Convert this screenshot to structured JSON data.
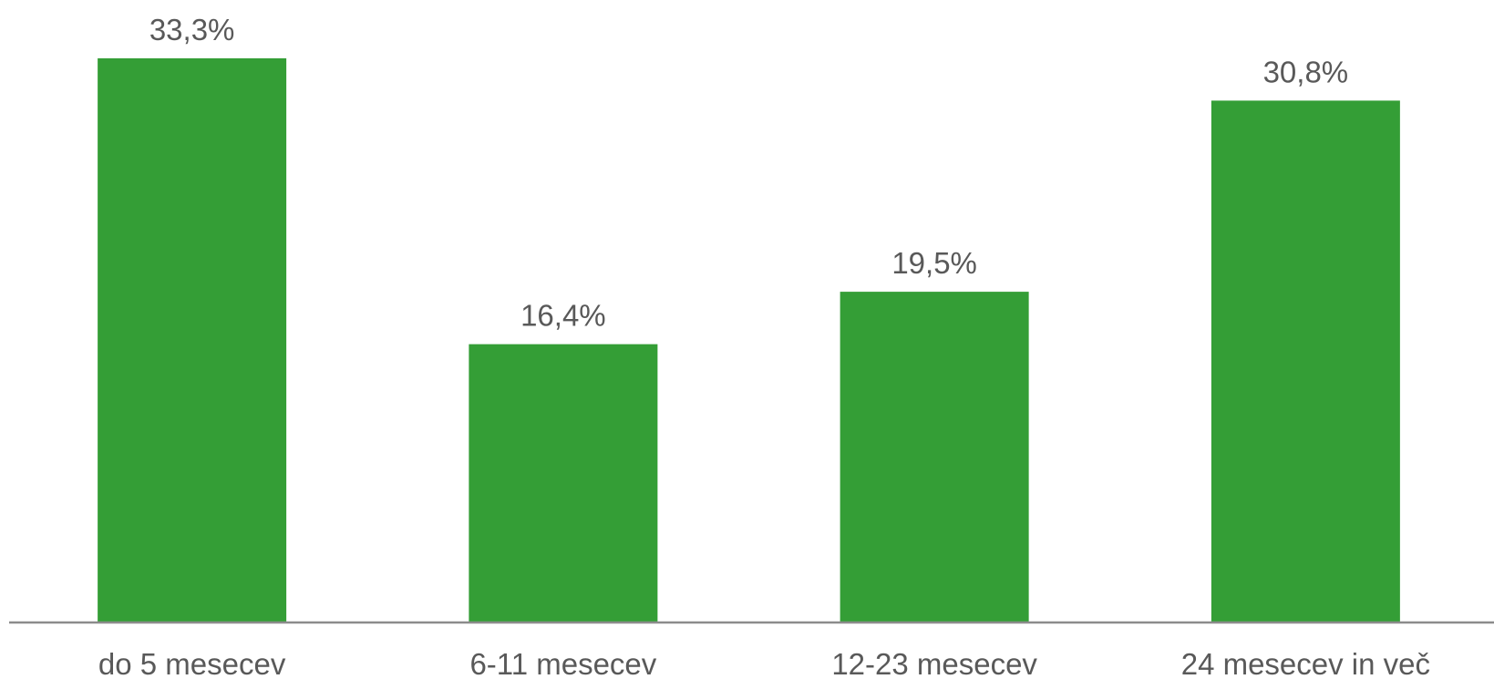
{
  "chart_data": {
    "type": "bar",
    "categories": [
      "do 5 mesecev",
      "6-11 mesecev",
      "12-23 mesecev",
      "24 mesecev in več"
    ],
    "values": [
      33.3,
      16.4,
      19.5,
      30.8
    ],
    "value_labels": [
      "33,3%",
      "16,4%",
      "19,5%",
      "30,8%"
    ],
    "title": "",
    "xlabel": "",
    "ylabel": "",
    "ylim": [
      0,
      33.3
    ],
    "grid": false,
    "legend": "none",
    "colors": {
      "bar": "#349e36",
      "axis": "#8c8c8c",
      "text": "#595959"
    }
  }
}
